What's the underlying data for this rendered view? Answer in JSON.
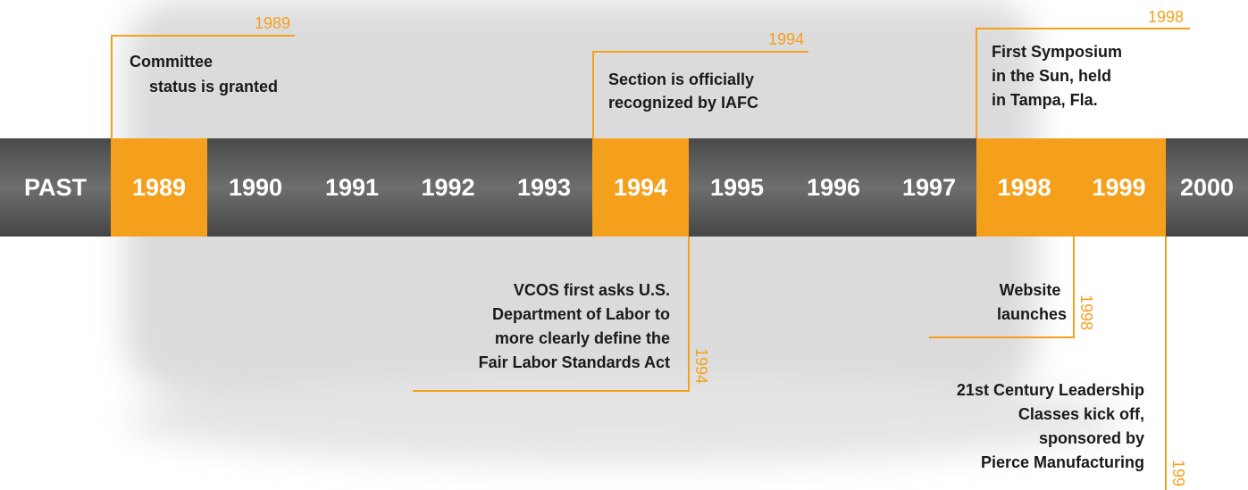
{
  "timeline": {
    "labels": [
      "PAST",
      "1989",
      "1990",
      "1991",
      "1992",
      "1993",
      "1994",
      "1995",
      "1996",
      "1997",
      "1998",
      "1999",
      "2000"
    ]
  },
  "events": [
    {
      "year": "1989",
      "lines": [
        "Committee",
        "status is granted"
      ]
    },
    {
      "year": "1994",
      "lines": [
        "Section is officially",
        "recognized by IAFC"
      ]
    },
    {
      "year": "1998",
      "lines": [
        "First Symposium",
        "in the Sun, held",
        "in Tampa, Fla."
      ]
    },
    {
      "year": "1994",
      "lines": [
        "VCOS first asks U.S.",
        "Department of Labor to",
        "more clearly define the",
        "Fair Labor Standards Act"
      ]
    },
    {
      "year": "1998",
      "lines": [
        "Website",
        "launches"
      ]
    },
    {
      "year": "199",
      "lines": [
        "21st Century Leadership",
        "Classes kick off,",
        "sponsored by",
        "Pierce Manufacturing"
      ]
    }
  ]
}
